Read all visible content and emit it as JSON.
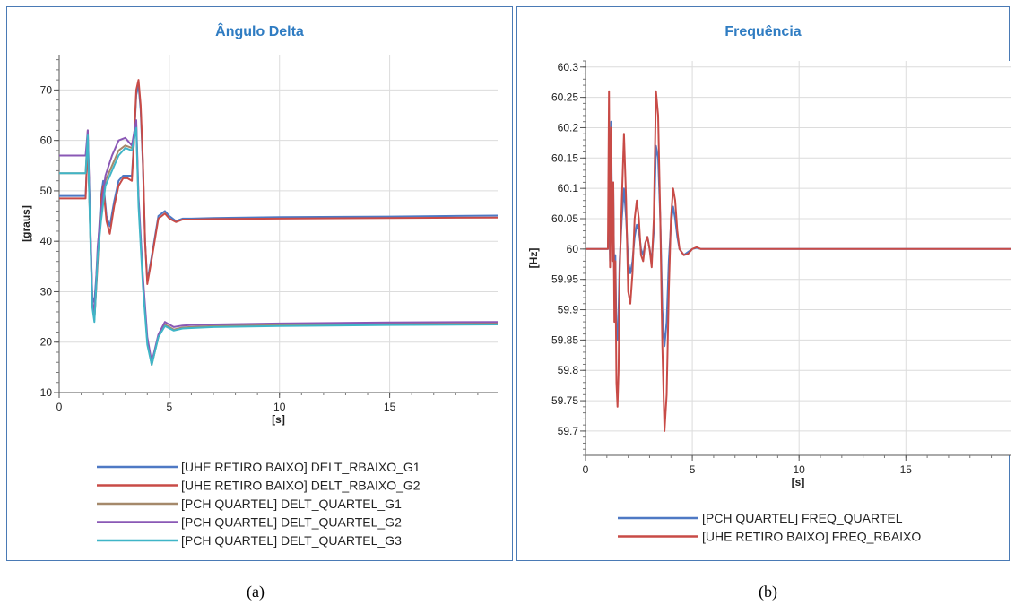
{
  "panels": [
    {
      "title": "Ângulo Delta",
      "caption": "(a)"
    },
    {
      "title": "Frequência",
      "caption": "(b)"
    }
  ],
  "chart_data": [
    {
      "type": "line",
      "title": "Ângulo Delta",
      "xlabel": "[s]",
      "ylabel": "[graus]",
      "xlim": [
        0,
        19.9
      ],
      "ylim": [
        10,
        77
      ],
      "xticks": [
        0,
        5,
        10,
        15
      ],
      "yticks": [
        10,
        20,
        30,
        40,
        50,
        60,
        70
      ],
      "grid": true,
      "legend_position": "bottom",
      "series": [
        {
          "name": "[UHE RETIRO BAIXO] DELT_RBAIXO_G1",
          "color": "#4e79c4",
          "x": [
            0,
            1.1,
            1.2,
            1.3,
            1.4,
            1.5,
            1.6,
            1.7,
            1.9,
            2.0,
            2.15,
            2.3,
            2.5,
            2.7,
            2.9,
            3.1,
            3.3,
            3.4,
            3.5,
            3.6,
            3.7,
            3.8,
            3.9,
            4.0,
            4.2,
            4.5,
            4.8,
            5.0,
            5.3,
            5.6,
            6.0,
            7,
            10,
            15,
            19.9
          ],
          "y": [
            49,
            49,
            49,
            60,
            45,
            29,
            28,
            34,
            49,
            52,
            45,
            43,
            48,
            52,
            53,
            53,
            53,
            60,
            69,
            71,
            66,
            55,
            40,
            32,
            37,
            45,
            46,
            45,
            44,
            44.5,
            44.5,
            44.6,
            44.8,
            44.9,
            45.1
          ]
        },
        {
          "name": "[UHE RETIRO BAIXO] DELT_RBAIXO_G2",
          "color": "#c84b47",
          "x": [
            0,
            1.1,
            1.2,
            1.3,
            1.4,
            1.5,
            1.6,
            1.7,
            1.9,
            2.0,
            2.15,
            2.3,
            2.5,
            2.7,
            2.9,
            3.1,
            3.3,
            3.4,
            3.5,
            3.6,
            3.7,
            3.8,
            3.9,
            4.0,
            4.2,
            4.5,
            4.8,
            5.0,
            5.3,
            5.6,
            6.0,
            7,
            10,
            15,
            19.9
          ],
          "y": [
            48.5,
            48.5,
            48.5,
            60,
            44,
            28,
            24.5,
            32,
            48,
            51,
            44,
            41.5,
            47,
            51,
            52.5,
            52.5,
            52,
            60,
            70,
            72,
            67,
            56,
            40,
            31.5,
            36.5,
            44.5,
            45.5,
            44.5,
            43.8,
            44.3,
            44.3,
            44.4,
            44.5,
            44.6,
            44.7
          ]
        },
        {
          "name": "[PCH QUARTEL] DELT_QUARTEL_G1",
          "color": "#a5896b",
          "x": [
            0,
            1.1,
            1.2,
            1.3,
            1.4,
            1.5,
            1.6,
            1.75,
            1.9,
            2.1,
            2.4,
            2.7,
            3.0,
            3.3,
            3.5,
            3.6,
            3.8,
            4.0,
            4.2,
            4.5,
            4.8,
            5.2,
            5.6,
            6,
            7,
            10,
            15,
            19.9
          ],
          "y": [
            53.5,
            53.5,
            53.5,
            62,
            44,
            28,
            24.5,
            38,
            45,
            52,
            55,
            58,
            59,
            58.5,
            63,
            48,
            32,
            20,
            15.5,
            21,
            23.5,
            22.5,
            22.9,
            23,
            23.2,
            23.5,
            23.6,
            23.7
          ]
        },
        {
          "name": "[PCH QUARTEL] DELT_QUARTEL_G2",
          "color": "#8a58b5",
          "x": [
            0,
            1.1,
            1.2,
            1.3,
            1.4,
            1.5,
            1.6,
            1.75,
            1.9,
            2.1,
            2.4,
            2.7,
            3.0,
            3.3,
            3.5,
            3.6,
            3.8,
            4.0,
            4.2,
            4.5,
            4.8,
            5.2,
            5.6,
            6,
            7,
            10,
            15,
            19.9
          ],
          "y": [
            57,
            57,
            57,
            62,
            46,
            29,
            25,
            39,
            46,
            53,
            57,
            60,
            60.5,
            59,
            64,
            49,
            33,
            21,
            16,
            21.5,
            24,
            23,
            23.3,
            23.4,
            23.5,
            23.7,
            23.9,
            24
          ]
        },
        {
          "name": "[PCH QUARTEL] DELT_QUARTEL_G3",
          "color": "#3fb5c7",
          "x": [
            0,
            1.1,
            1.2,
            1.3,
            1.4,
            1.5,
            1.6,
            1.75,
            1.9,
            2.1,
            2.4,
            2.7,
            3.0,
            3.3,
            3.5,
            3.6,
            3.8,
            4.0,
            4.2,
            4.5,
            4.8,
            5.2,
            5.6,
            6,
            7,
            10,
            15,
            19.9
          ],
          "y": [
            53.5,
            53.5,
            53.5,
            61,
            43,
            27,
            24,
            37,
            44,
            51,
            54,
            57,
            58.5,
            58,
            62.5,
            47,
            31,
            19.5,
            15.5,
            21,
            23.2,
            22.3,
            22.7,
            22.8,
            23,
            23.2,
            23.4,
            23.5
          ]
        }
      ]
    },
    {
      "type": "line",
      "title": "Frequência",
      "xlabel": "[s]",
      "ylabel": "[Hz]",
      "xlim": [
        0,
        19.9
      ],
      "ylim": [
        59.66,
        60.31
      ],
      "xticks": [
        0,
        5,
        10,
        15
      ],
      "yticks": [
        59.7,
        59.75,
        59.8,
        59.85,
        59.9,
        59.95,
        60,
        60.05,
        60.1,
        60.15,
        60.2,
        60.25,
        60.3
      ],
      "grid": true,
      "legend_position": "bottom",
      "series": [
        {
          "name": "[PCH QUARTEL] FREQ_QUARTEL",
          "color": "#4e79c4",
          "x": [
            0,
            1.05,
            1.1,
            1.15,
            1.2,
            1.25,
            1.3,
            1.35,
            1.4,
            1.45,
            1.5,
            1.55,
            1.6,
            1.7,
            1.8,
            1.9,
            2.0,
            2.1,
            2.2,
            2.3,
            2.4,
            2.5,
            2.6,
            2.7,
            2.8,
            2.9,
            3.0,
            3.1,
            3.2,
            3.3,
            3.4,
            3.5,
            3.6,
            3.7,
            3.8,
            3.9,
            4.0,
            4.1,
            4.2,
            4.3,
            4.4,
            4.6,
            4.8,
            5.0,
            5.2,
            5.4,
            5.6,
            6,
            10,
            15,
            19.9
          ],
          "y": [
            60,
            60,
            60.07,
            59.98,
            60.21,
            60.01,
            60.1,
            59.92,
            59.99,
            59.86,
            59.85,
            59.9,
            59.98,
            60.05,
            60.1,
            60.05,
            59.98,
            59.96,
            59.98,
            60.02,
            60.04,
            60.03,
            60,
            59.99,
            60.01,
            60.02,
            60,
            59.98,
            60.03,
            60.17,
            60.15,
            60.05,
            59.9,
            59.84,
            59.88,
            59.98,
            60.04,
            60.07,
            60.05,
            60.02,
            60,
            59.99,
            59.995,
            60,
            60.002,
            60,
            60,
            60,
            60,
            60,
            60
          ]
        },
        {
          "name": "[UHE RETIRO BAIXO] FREQ_RBAIXO",
          "color": "#c84b47",
          "x": [
            0,
            1.05,
            1.1,
            1.15,
            1.2,
            1.25,
            1.3,
            1.35,
            1.4,
            1.45,
            1.5,
            1.55,
            1.6,
            1.7,
            1.8,
            1.9,
            2.0,
            2.1,
            2.2,
            2.3,
            2.4,
            2.5,
            2.6,
            2.7,
            2.8,
            2.9,
            3.0,
            3.1,
            3.2,
            3.3,
            3.4,
            3.5,
            3.6,
            3.7,
            3.8,
            3.9,
            4.0,
            4.1,
            4.2,
            4.3,
            4.4,
            4.6,
            4.8,
            5.0,
            5.2,
            5.4,
            5.6,
            6,
            10,
            15,
            19.9
          ],
          "y": [
            60,
            60,
            60.26,
            59.97,
            60.2,
            59.98,
            60.11,
            59.88,
            59.98,
            59.78,
            59.74,
            59.8,
            59.96,
            60.08,
            60.19,
            60.08,
            59.93,
            59.91,
            59.96,
            60.05,
            60.08,
            60.05,
            59.99,
            59.98,
            60.01,
            60.02,
            60,
            59.97,
            60.05,
            60.26,
            60.22,
            60.05,
            59.84,
            59.7,
            59.76,
            59.93,
            60.05,
            60.1,
            60.08,
            60.03,
            60,
            59.99,
            59.992,
            60,
            60.003,
            60,
            60,
            60,
            60,
            60,
            60
          ]
        }
      ]
    }
  ]
}
